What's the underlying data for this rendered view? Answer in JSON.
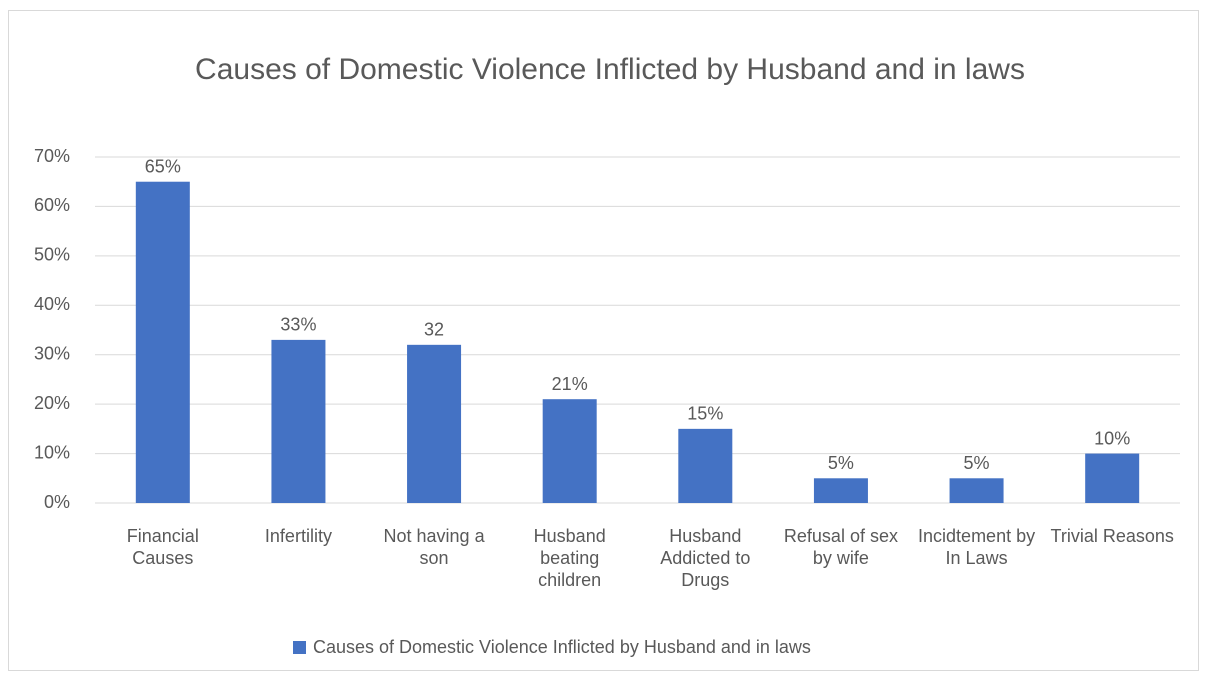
{
  "chart_data": {
    "type": "bar",
    "title": "Causes of Domestic Violence Inflicted by Husband and in laws",
    "categories": [
      "Financial Causes",
      "Infertility",
      "Not having a son",
      "Husband beating children",
      "Husband Addicted to Drugs",
      "Refusal of sex by wife",
      "Incidtement by In Laws",
      "Trivial Reasons"
    ],
    "series": [
      {
        "name": "Causes of Domestic Violence Inflicted by Husband and in laws",
        "color": "#4472c4",
        "values": [
          65,
          33,
          32,
          21,
          15,
          5,
          5,
          10
        ],
        "value_labels": [
          "65%",
          "33%",
          "32",
          "21%",
          "15%",
          "5%",
          "5%",
          "10%"
        ]
      }
    ],
    "ylim": [
      0,
      70
    ],
    "yticks": [
      {
        "value": 0,
        "label": "0%"
      },
      {
        "value": 10,
        "label": "10%"
      },
      {
        "value": 20,
        "label": "20%"
      },
      {
        "value": 30,
        "label": "30%"
      },
      {
        "value": 40,
        "label": "40%"
      },
      {
        "value": 50,
        "label": "50%"
      },
      {
        "value": 60,
        "label": "60%"
      },
      {
        "value": 70,
        "label": "70%"
      }
    ],
    "grid": true,
    "legend": "bottom"
  }
}
